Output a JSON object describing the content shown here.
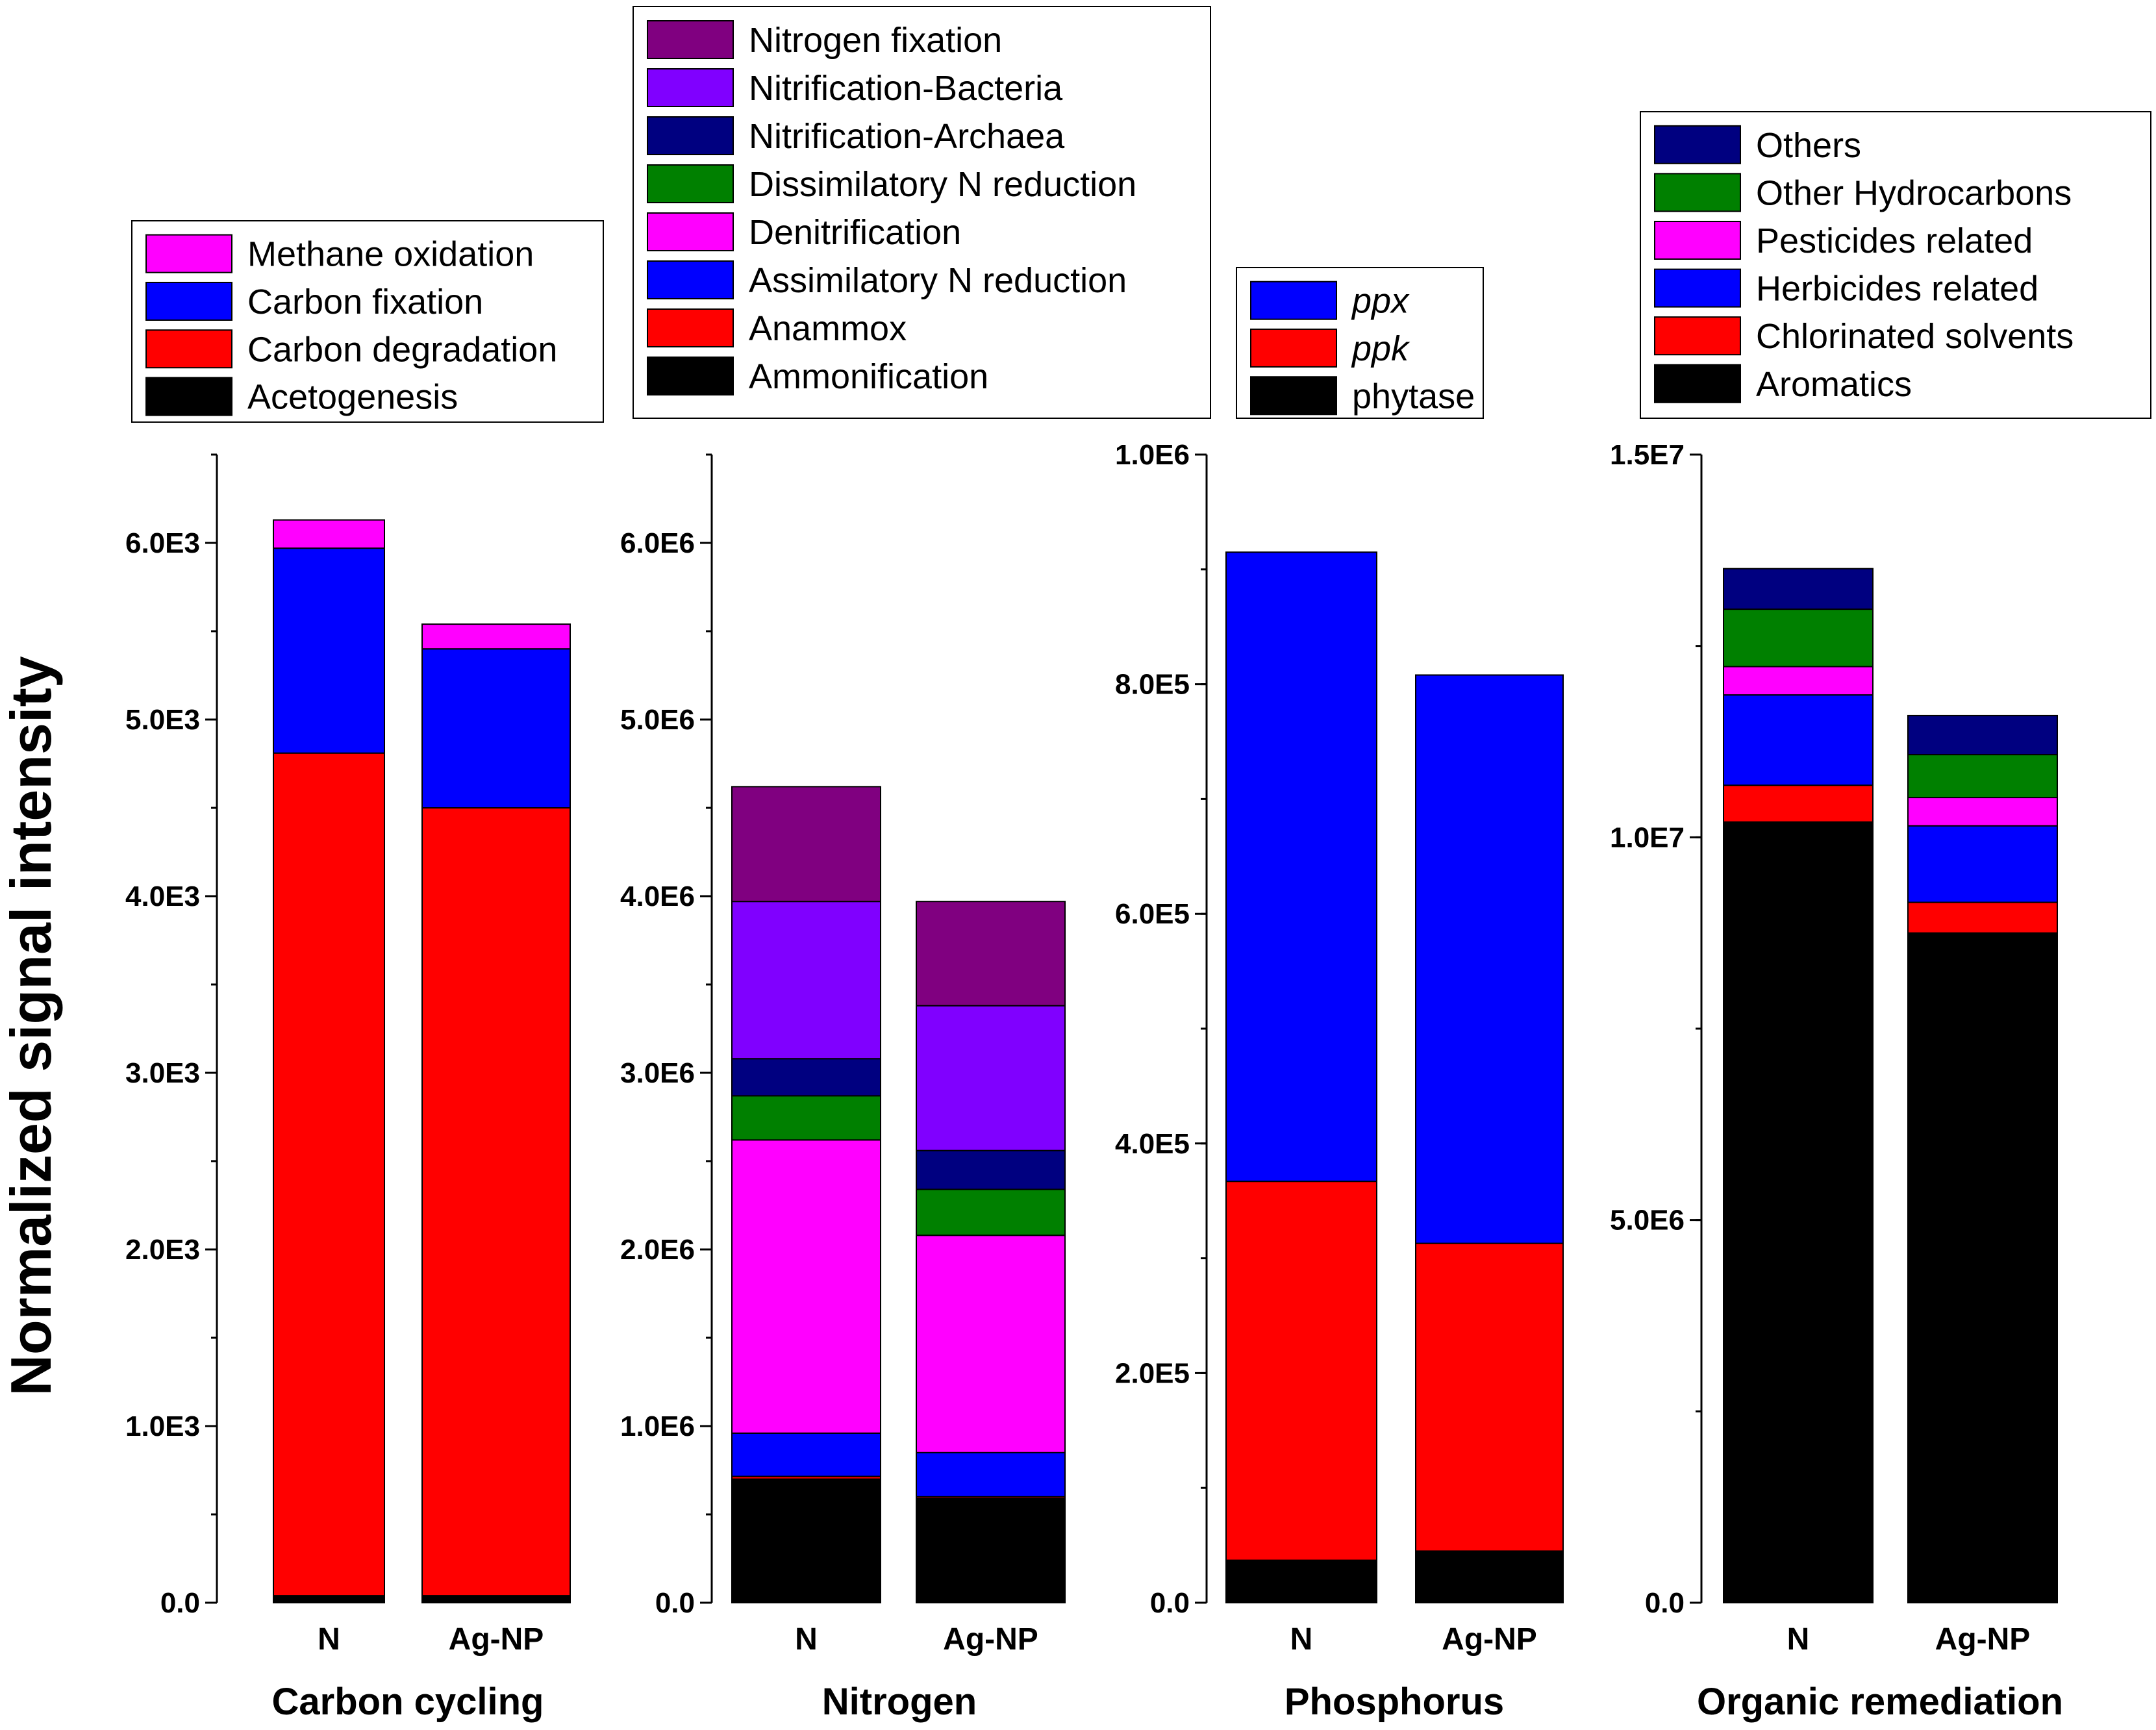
{
  "figure": {
    "y_axis_title": "Normalized signal intensity"
  },
  "chart_data": [
    {
      "type": "bar",
      "stacked": true,
      "title": "Carbon cycling",
      "xlabel": "Carbon cycling",
      "ylabel": "Normalized signal intensity",
      "categories": [
        "N",
        "Ag-NP"
      ],
      "ylim": [
        0,
        6500
      ],
      "y_major_ticks": [
        0,
        1000,
        2000,
        3000,
        4000,
        5000,
        6000
      ],
      "y_tick_labels": [
        "0.0",
        "1.0E3",
        "2.0E3",
        "3.0E3",
        "4.0E3",
        "5.0E3",
        "6.0E3"
      ],
      "y_minor_step": 500,
      "series": [
        {
          "name": "Acetogenesis",
          "color": "#000000",
          "values": [
            40,
            40
          ]
        },
        {
          "name": "Carbon degradation",
          "color": "#ff0000",
          "values": [
            4770,
            4460
          ]
        },
        {
          "name": "Carbon fixation",
          "color": "#0000ff",
          "values": [
            1160,
            900
          ]
        },
        {
          "name": "Methane oxidation",
          "color": "#ff00ff",
          "values": [
            160,
            140
          ]
        }
      ],
      "legend_order": [
        "Methane oxidation",
        "Carbon fixation",
        "Carbon degradation",
        "Acetogenesis"
      ]
    },
    {
      "type": "bar",
      "stacked": true,
      "title": "Nitrogen",
      "xlabel": "Nitrogen",
      "categories": [
        "N",
        "Ag-NP"
      ],
      "ylim": [
        0,
        6500000
      ],
      "y_major_ticks": [
        0,
        1000000,
        2000000,
        3000000,
        4000000,
        5000000,
        6000000
      ],
      "y_tick_labels": [
        "0.0",
        "1.0E6",
        "2.0E6",
        "3.0E6",
        "4.0E6",
        "5.0E6",
        "6.0E6"
      ],
      "y_minor_step": 500000,
      "series": [
        {
          "name": "Ammonification",
          "color": "#000000",
          "values": [
            700000,
            590000
          ]
        },
        {
          "name": "Anammox",
          "color": "#ff0000",
          "values": [
            15000,
            10000
          ]
        },
        {
          "name": "Assimilatory N reduction",
          "color": "#0000ff",
          "values": [
            245000,
            250000
          ]
        },
        {
          "name": "Denitrification",
          "color": "#ff00ff",
          "values": [
            1660000,
            1230000
          ]
        },
        {
          "name": "Dissimilatory N reduction",
          "color": "#008000",
          "values": [
            250000,
            260000
          ]
        },
        {
          "name": "Nitrification-Archaea",
          "color": "#000080",
          "values": [
            210000,
            220000
          ]
        },
        {
          "name": "Nitrification-Bacteria",
          "color": "#8000ff",
          "values": [
            890000,
            820000
          ]
        },
        {
          "name": "Nitrogen fixation",
          "color": "#800080",
          "values": [
            650000,
            590000
          ]
        }
      ],
      "legend_order": [
        "Nitrogen fixation",
        "Nitrification-Bacteria",
        "Nitrification-Archaea",
        "Dissimilatory N reduction",
        "Denitrification",
        "Assimilatory N reduction",
        "Anammox",
        "Ammonification"
      ]
    },
    {
      "type": "bar",
      "stacked": true,
      "title": "Phosphorus",
      "xlabel": "Phosphorus",
      "categories": [
        "N",
        "Ag-NP"
      ],
      "ylim": [
        0,
        1000000
      ],
      "y_major_ticks": [
        0,
        200000,
        400000,
        600000,
        800000,
        1000000
      ],
      "y_tick_labels": [
        "0.0",
        "2.0E5",
        "4.0E5",
        "6.0E5",
        "8.0E5",
        "1.0E6"
      ],
      "y_minor_step": 100000,
      "series": [
        {
          "name": "phytase",
          "color": "#000000",
          "values": [
            37000,
            45000
          ]
        },
        {
          "name": "ppk",
          "color": "#ff0000",
          "values": [
            330000,
            268000
          ]
        },
        {
          "name": "ppx",
          "color": "#0000ff",
          "values": [
            548000,
            495000
          ]
        }
      ],
      "italic_series": [
        "ppx",
        "ppk"
      ],
      "legend_order": [
        "ppx",
        "ppk",
        "phytase"
      ]
    },
    {
      "type": "bar",
      "stacked": true,
      "title": "Organic remediation",
      "xlabel": "Organic remediation",
      "categories": [
        "N",
        "Ag-NP"
      ],
      "ylim": [
        0,
        15000000
      ],
      "y_major_ticks": [
        0,
        5000000,
        10000000,
        15000000
      ],
      "y_tick_labels": [
        "0.0",
        "5.0E6",
        "1.0E7",
        "1.5E7"
      ],
      "y_minor_step": 2500000,
      "series": [
        {
          "name": "Aromatics",
          "color": "#000000",
          "values": [
            10200000,
            8750000
          ]
        },
        {
          "name": "Chlorinated solvents",
          "color": "#ff0000",
          "values": [
            480000,
            400000
          ]
        },
        {
          "name": "Herbicides related",
          "color": "#0000ff",
          "values": [
            1180000,
            1000000
          ]
        },
        {
          "name": "Pesticides related",
          "color": "#ff00ff",
          "values": [
            370000,
            370000
          ]
        },
        {
          "name": "Other Hydrocarbons",
          "color": "#008000",
          "values": [
            750000,
            560000
          ]
        },
        {
          "name": "Others",
          "color": "#000080",
          "values": [
            530000,
            510000
          ]
        }
      ],
      "legend_order": [
        "Others",
        "Other Hydrocarbons",
        "Pesticides related",
        "Herbicides related",
        "Chlorinated solvents",
        "Aromatics"
      ]
    }
  ]
}
